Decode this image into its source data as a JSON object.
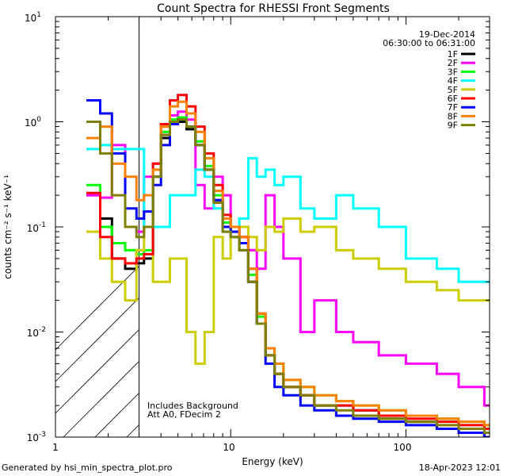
{
  "chart_data": {
    "type": "line",
    "title": "Count Spectra for RHESSI Front Segments",
    "xlabel": "Energy (keV)",
    "ylabel": "counts cm⁻² s⁻¹ keV⁻¹",
    "xscale": "log",
    "yscale": "log",
    "xlim": [
      1,
      300
    ],
    "ylim": [
      0.001,
      10
    ],
    "x_tick_labels": [
      "1",
      "10",
      "100"
    ],
    "y_tick_labels": [
      {
        "base": "10",
        "exp": "1"
      },
      {
        "base": "10",
        "exp": "0"
      },
      {
        "base": "10",
        "exp": "-1"
      },
      {
        "base": "10",
        "exp": "-2"
      },
      {
        "base": "10",
        "exp": "-3"
      }
    ],
    "date": "19-Dec-2014",
    "time_range": "06:30:00 to 06:31:00",
    "excluded_range_keV": [
      1,
      3
    ],
    "annotation_line1": "Includes Background",
    "annotation_line2": "Att A0, FDecim 2",
    "series": [
      {
        "name": "1F",
        "color": "#000000",
        "energies": [
          1.5,
          1.8,
          2.1,
          2.5,
          2.9,
          3.2,
          3.6,
          4.0,
          4.5,
          5.0,
          5.6,
          6.3,
          7.1,
          8.0,
          9.0,
          10.0,
          11.2,
          12.6,
          14.1,
          15.8,
          17.8,
          20,
          25,
          30,
          40,
          50,
          70,
          100,
          150,
          200,
          280
        ],
        "values": [
          0.2,
          0.12,
          0.05,
          0.04,
          0.045,
          0.05,
          0.3,
          0.7,
          0.95,
          1.0,
          0.85,
          0.6,
          0.35,
          0.18,
          0.1,
          0.08,
          0.06,
          0.03,
          0.012,
          0.006,
          0.004,
          0.003,
          0.0025,
          0.002,
          0.002,
          0.0018,
          0.0015,
          0.0014,
          0.0012,
          0.0011,
          0.001
        ]
      },
      {
        "name": "2F",
        "color": "#ff00ff",
        "energies": [
          1.5,
          1.8,
          2.1,
          2.5,
          2.9,
          3.2,
          3.6,
          4.0,
          4.5,
          5.0,
          5.6,
          6.3,
          7.1,
          8.0,
          9.0,
          10.0,
          11.2,
          12.6,
          14.1,
          15.8,
          17.8,
          20,
          25,
          30,
          40,
          50,
          70,
          100,
          150,
          200,
          280
        ],
        "values": [
          0.2,
          0.19,
          0.6,
          0.1,
          0.09,
          0.3,
          0.4,
          0.75,
          1.15,
          1.25,
          1.05,
          0.25,
          0.15,
          0.3,
          0.2,
          0.1,
          0.08,
          0.06,
          0.04,
          0.2,
          0.1,
          0.05,
          0.01,
          0.02,
          0.01,
          0.008,
          0.006,
          0.005,
          0.004,
          0.003,
          0.002
        ]
      },
      {
        "name": "3F",
        "color": "#00ff00",
        "energies": [
          1.5,
          1.8,
          2.1,
          2.5,
          2.9,
          3.2,
          3.6,
          4.0,
          4.5,
          5.0,
          5.6,
          6.3,
          7.1,
          8.0,
          9.0,
          10.0,
          11.2,
          12.6,
          14.1,
          15.8,
          17.8,
          20,
          25,
          30,
          40,
          50,
          70,
          100,
          150,
          200,
          280
        ],
        "values": [
          0.25,
          0.1,
          0.07,
          0.06,
          0.055,
          0.06,
          0.35,
          0.8,
          1.05,
          1.1,
          0.9,
          0.65,
          0.38,
          0.2,
          0.11,
          0.09,
          0.07,
          0.035,
          0.014,
          0.007,
          0.005,
          0.0035,
          0.003,
          0.0025,
          0.0022,
          0.002,
          0.0018,
          0.0016,
          0.0015,
          0.0014,
          0.0013
        ]
      },
      {
        "name": "4F",
        "color": "#00ffff",
        "energies": [
          1.5,
          1.8,
          2.1,
          2.5,
          2.9,
          3.2,
          3.6,
          4.0,
          4.5,
          5.0,
          5.6,
          6.3,
          7.1,
          8.0,
          9.0,
          10.0,
          11.2,
          12.6,
          14.1,
          15.8,
          17.8,
          20,
          25,
          30,
          40,
          50,
          70,
          100,
          150,
          200,
          280
        ],
        "values": [
          0.55,
          0.6,
          0.55,
          0.55,
          0.55,
          0.1,
          0.1,
          0.1,
          0.2,
          0.2,
          0.2,
          0.35,
          0.3,
          0.15,
          0.09,
          0.08,
          0.12,
          0.45,
          0.3,
          0.35,
          0.25,
          0.3,
          0.15,
          0.12,
          0.2,
          0.15,
          0.1,
          0.05,
          0.04,
          0.03,
          0.03
        ]
      },
      {
        "name": "5F",
        "color": "#cccc00",
        "energies": [
          1.5,
          1.8,
          2.1,
          2.5,
          2.9,
          3.2,
          3.6,
          4.0,
          4.5,
          5.0,
          5.6,
          6.3,
          7.1,
          8.0,
          9.0,
          10.0,
          11.2,
          12.6,
          14.1,
          15.8,
          17.8,
          20,
          25,
          30,
          40,
          50,
          70,
          100,
          150,
          200,
          280
        ],
        "values": [
          0.09,
          0.05,
          0.03,
          0.02,
          0.06,
          0.1,
          0.03,
          0.03,
          0.05,
          0.05,
          0.01,
          0.005,
          0.01,
          0.08,
          0.05,
          0.08,
          0.1,
          0.08,
          0.06,
          0.1,
          0.09,
          0.12,
          0.09,
          0.1,
          0.06,
          0.05,
          0.04,
          0.03,
          0.025,
          0.02,
          0.02
        ]
      },
      {
        "name": "6F",
        "color": "#ff0000",
        "energies": [
          1.5,
          1.8,
          2.1,
          2.5,
          2.9,
          3.2,
          3.6,
          4.0,
          4.5,
          5.0,
          5.6,
          6.3,
          7.1,
          8.0,
          9.0,
          10.0,
          11.2,
          12.6,
          14.1,
          15.8,
          17.8,
          20,
          25,
          30,
          40,
          50,
          70,
          100,
          150,
          200,
          280
        ],
        "values": [
          0.21,
          0.08,
          0.05,
          0.045,
          0.05,
          0.055,
          0.4,
          0.95,
          1.6,
          1.8,
          1.4,
          0.9,
          0.5,
          0.25,
          0.13,
          0.1,
          0.08,
          0.04,
          0.015,
          0.006,
          0.004,
          0.003,
          0.0025,
          0.002,
          0.002,
          0.0018,
          0.0016,
          0.0015,
          0.0014,
          0.0013,
          0.0012
        ]
      },
      {
        "name": "7F",
        "color": "#0000ff",
        "energies": [
          1.5,
          1.8,
          2.1,
          2.5,
          2.9,
          3.2,
          3.6,
          4.0,
          4.5,
          5.0,
          5.6,
          6.3,
          7.1,
          8.0,
          9.0,
          10.0,
          11.2,
          12.6,
          14.1,
          15.8,
          17.8,
          20,
          25,
          30,
          40,
          50,
          70,
          100,
          150,
          200,
          280
        ],
        "values": [
          1.6,
          1.2,
          0.5,
          0.15,
          0.12,
          0.14,
          0.25,
          0.6,
          0.95,
          1.05,
          0.9,
          0.6,
          0.35,
          0.18,
          0.1,
          0.09,
          0.07,
          0.03,
          0.012,
          0.005,
          0.003,
          0.0025,
          0.002,
          0.0018,
          0.0016,
          0.0015,
          0.0014,
          0.0013,
          0.0012,
          0.0011,
          0.001
        ]
      },
      {
        "name": "8F",
        "color": "#ff8000",
        "energies": [
          1.5,
          1.8,
          2.1,
          2.5,
          2.9,
          3.2,
          3.6,
          4.0,
          4.5,
          5.0,
          5.6,
          6.3,
          7.1,
          8.0,
          9.0,
          10.0,
          11.2,
          12.6,
          14.1,
          15.8,
          17.8,
          20,
          25,
          30,
          40,
          50,
          70,
          100,
          150,
          200,
          280
        ],
        "values": [
          0.7,
          0.9,
          0.4,
          0.3,
          0.18,
          0.2,
          0.35,
          0.9,
          1.4,
          1.55,
          1.2,
          0.8,
          0.45,
          0.22,
          0.12,
          0.1,
          0.08,
          0.04,
          0.015,
          0.007,
          0.005,
          0.0035,
          0.003,
          0.0025,
          0.0022,
          0.002,
          0.0018,
          0.0016,
          0.0015,
          0.0014,
          0.0013
        ]
      },
      {
        "name": "9F",
        "color": "#808000",
        "energies": [
          1.5,
          1.8,
          2.1,
          2.5,
          2.9,
          3.2,
          3.6,
          4.0,
          4.5,
          5.0,
          5.6,
          6.3,
          7.1,
          8.0,
          9.0,
          10.0,
          11.2,
          12.6,
          14.1,
          15.8,
          17.8,
          20,
          25,
          30,
          40,
          50,
          70,
          100,
          150,
          200,
          280
        ],
        "values": [
          1.0,
          0.5,
          0.2,
          0.1,
          0.08,
          0.1,
          0.3,
          0.75,
          1.0,
          1.05,
          0.9,
          0.6,
          0.35,
          0.17,
          0.09,
          0.08,
          0.06,
          0.03,
          0.012,
          0.006,
          0.004,
          0.003,
          0.0025,
          0.002,
          0.0018,
          0.0016,
          0.0015,
          0.0014,
          0.0013,
          0.0012,
          0.0011
        ]
      }
    ]
  },
  "footer": {
    "left": "Generated by hsi_min_spectra_plot.pro",
    "right": "18-Apr-2023 12:01"
  }
}
